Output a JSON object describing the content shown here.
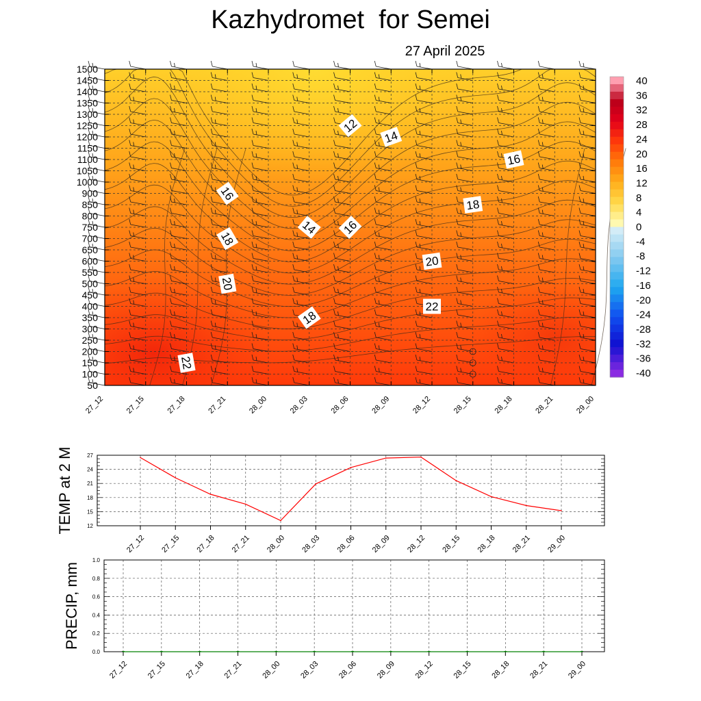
{
  "header": {
    "title": "Kazhydromet  for Semei",
    "date": "27 April 2025"
  },
  "chart_data": [
    {
      "type": "heatmap",
      "name": "temperature cross-section",
      "x_labels": [
        "27_12",
        "27_15",
        "27_18",
        "27_21",
        "28_00",
        "28_03",
        "28_06",
        "28_09",
        "28_12",
        "28_15",
        "28_18",
        "28_21",
        "29_00"
      ],
      "y_labels": [
        "50",
        "100",
        "150",
        "200",
        "250",
        "300",
        "350",
        "400",
        "450",
        "500",
        "550",
        "600",
        "650",
        "700",
        "750",
        "800",
        "850",
        "900",
        "1000",
        "1050",
        "1100",
        "1150",
        "1200",
        "1250",
        "1300",
        "1350",
        "1400",
        "1450",
        "1500"
      ],
      "grid": "dashed",
      "colorbar": {
        "labels": [
          "40",
          "36",
          "32",
          "28",
          "24",
          "20",
          "16",
          "12",
          "8",
          "4",
          "0",
          "-4",
          "-8",
          "-12",
          "-16",
          "-20",
          "-24",
          "-28",
          "-32",
          "-36",
          "-40"
        ],
        "range": [
          -40,
          40
        ],
        "positive_colors": [
          "#fff9b0",
          "#ffd84a",
          "#ffae1a",
          "#ff7a0a",
          "#ff3a0a",
          "#e3001a",
          "#b8001a",
          "#ff9fb0"
        ],
        "negative_colors": [
          "#d3ecf7",
          "#7fc8f0",
          "#1fa8f0",
          "#1050f0",
          "#1010d0",
          "#8a2be2"
        ]
      },
      "values_min_max": [
        10,
        24
      ],
      "contour_labels": [
        {
          "text": "12",
          "x": "28_06",
          "y": "1250",
          "angle": -40
        },
        {
          "text": "14",
          "x": "28_09",
          "y": "1200",
          "angle": -20
        },
        {
          "text": "16",
          "x": "28_18",
          "y": "1100",
          "angle": -12
        },
        {
          "text": "16",
          "x": "27_21",
          "y": "900",
          "angle": 55
        },
        {
          "text": "18",
          "x": "28_15",
          "y": "850",
          "angle": -8
        },
        {
          "text": "14",
          "x": "28_03",
          "y": "750",
          "angle": 40
        },
        {
          "text": "16",
          "x": "28_06",
          "y": "750",
          "angle": -45
        },
        {
          "text": "18",
          "x": "27_21",
          "y": "700",
          "angle": 60
        },
        {
          "text": "20",
          "x": "28_12",
          "y": "600",
          "angle": -8
        },
        {
          "text": "20",
          "x": "27_21",
          "y": "500",
          "angle": 80
        },
        {
          "text": "22",
          "x": "28_12",
          "y": "400",
          "angle": 0
        },
        {
          "text": "18",
          "x": "28_03",
          "y": "350",
          "angle": -35
        },
        {
          "text": "22",
          "x": "27_18",
          "y": "150",
          "angle": 80
        }
      ]
    },
    {
      "type": "line",
      "ylabel": "TEMP at 2 M",
      "x": [
        "27_12",
        "27_15",
        "27_18",
        "27_21",
        "28_00",
        "28_03",
        "28_06",
        "28_09",
        "28_12",
        "28_15",
        "28_18",
        "28_21",
        "29_00"
      ],
      "y_ticks": [
        "27",
        "24",
        "21",
        "18",
        "15",
        "12"
      ],
      "ylim": [
        12,
        27
      ],
      "series": [
        {
          "values": [
            26.5,
            22.2,
            18.7,
            16.6,
            13.1,
            20.9,
            24.4,
            26.4,
            26.6,
            21.6,
            18.2,
            16.3,
            15.2
          ],
          "color": "#ff0000"
        }
      ]
    },
    {
      "type": "bar",
      "ylabel": "PRECIP, mm",
      "x": [
        "27_12",
        "27_15",
        "27_18",
        "27_21",
        "28_00",
        "28_03",
        "28_06",
        "28_09",
        "28_12",
        "28_15",
        "28_18",
        "28_21",
        "29_00"
      ],
      "y_ticks": [
        "1.0",
        "0.8",
        "0.6",
        "0.4",
        "0.2",
        "0.0"
      ],
      "ylim": [
        0,
        1
      ],
      "series": [
        {
          "values": [
            0,
            0,
            0,
            0,
            0,
            0,
            0,
            0,
            0,
            0,
            0,
            0,
            0
          ],
          "color": "#008000"
        }
      ]
    }
  ]
}
